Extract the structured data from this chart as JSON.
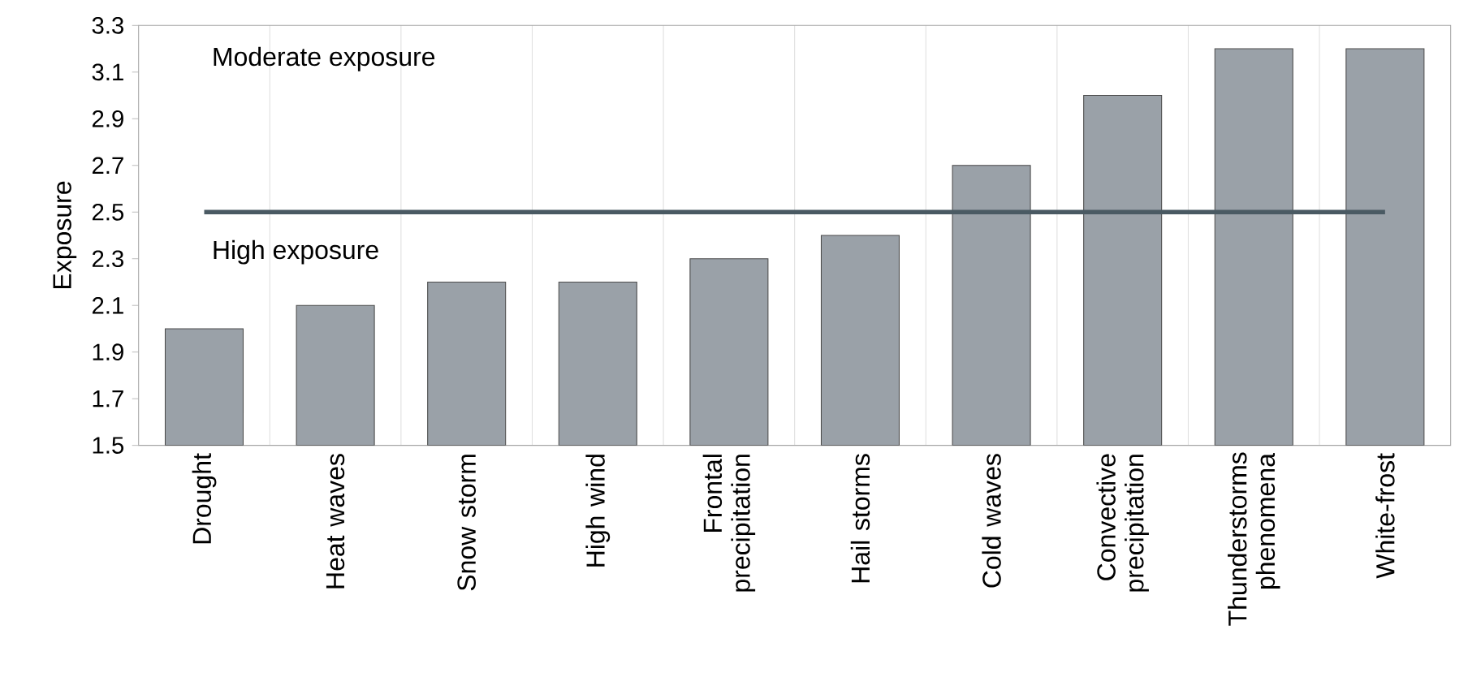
{
  "chart_data": {
    "type": "bar",
    "ylabel": "Exposure",
    "categories": [
      "Drought",
      "Heat waves",
      "Snow storm",
      "High wind",
      "Frontal precipitation",
      "Hail storms",
      "Cold waves",
      "Convective precipitation",
      "Thunderstorms phenomena",
      "White-frost"
    ],
    "values": [
      2.0,
      2.1,
      2.2,
      2.2,
      2.3,
      2.4,
      2.7,
      3.0,
      3.2,
      3.2
    ],
    "color": "#9aa1a8",
    "ylim": [
      1.5,
      3.3
    ],
    "yticks": [
      1.5,
      1.7,
      1.9,
      2.1,
      2.3,
      2.5,
      2.7,
      2.9,
      3.1,
      3.3
    ],
    "grid": "x",
    "ref_lines": [
      {
        "axis": "y",
        "value": 2.5,
        "color": "#4a5a63"
      }
    ],
    "annotations": [
      "Moderate exposure",
      "High exposure"
    ]
  }
}
